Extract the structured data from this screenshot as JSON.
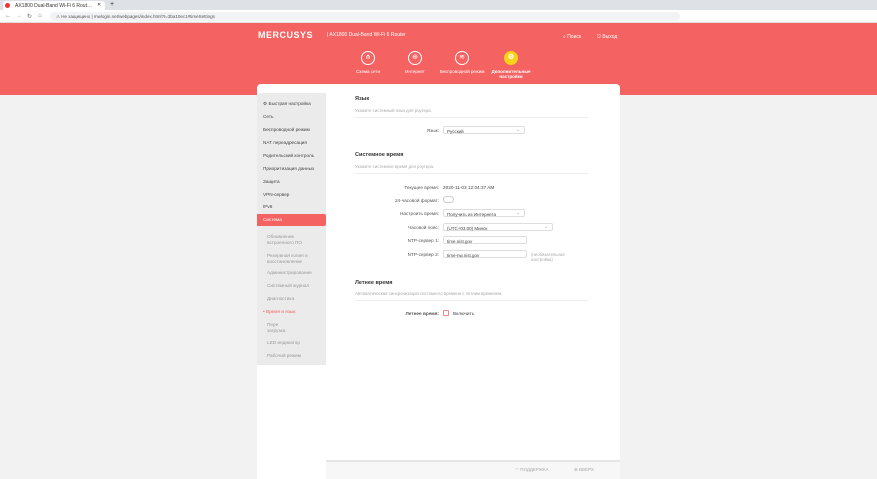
{
  "browser": {
    "tab_title": "AX1800 Dual-Band Wi-Fi 6 Rout…",
    "security": "Не защищено",
    "url": "mwlogin.net/webpages/index.html?t=3ba10ec1#timeSettings"
  },
  "header": {
    "logo": "MERCUSYS",
    "model": "AX1800 Dual-Band Wi-Fi 6 Router",
    "search": "Поиск",
    "logout": "Выход",
    "nav": [
      {
        "label": "Схема сети",
        "icon": "network-map-icon"
      },
      {
        "label": "Интернет",
        "icon": "globe-icon"
      },
      {
        "label": "Беспроводной режим",
        "icon": "wifi-icon"
      },
      {
        "label": "Дополнительные настройки",
        "icon": "gear-icon",
        "active": true
      }
    ]
  },
  "sidebar": {
    "items": [
      "Быстрая настройка",
      "Сеть",
      "Беспроводной режим",
      "NAT переадресация",
      "Родительский контроль",
      "Приоритизация данных",
      "Защита",
      "VPN-сервер",
      "IPv6",
      "Система"
    ],
    "subitems": [
      "Обновление встроенного ПО",
      "Резервная копия и восстановление",
      "Администрирование",
      "Системный журнал",
      "Диагностика",
      "Время и язык",
      "Пере загрузка",
      "LED индикатор",
      "Рабочий режим"
    ]
  },
  "language": {
    "title": "Язык",
    "desc": "Укажите системный язык для роутера.",
    "label": "Язык:",
    "value": "Русский"
  },
  "time": {
    "title": "Системное время",
    "desc": "Укажите системное время для роутера.",
    "current_label": "Текущее время:",
    "current": "2020-11-03 12:04:37 AM",
    "format_label": "24-часовой формат:",
    "format_on": false,
    "set_label": "Настроить время:",
    "set_value": "Получить из Интернета",
    "tz_label": "Часовой пояс:",
    "tz_value": "(UTC+03:00) Минск",
    "ntp1_label": "NTP-сервер 1:",
    "ntp1": "time.nist.gov",
    "ntp2_label": "NTP-сервер 2:",
    "ntp2": "time-nw.nist.gov",
    "ntp2_note": "(необязательная настройка)"
  },
  "dst": {
    "title": "Летнее время",
    "desc": "Автоматическая синхронизация системного времени с летним временем.",
    "label": "Летнее время:",
    "checkbox": "Включить",
    "checked": false
  },
  "footer": {
    "support": "ПОДДЕРЖКА",
    "top": "ВВЕРХ"
  },
  "colors": {
    "brand": "#f56262",
    "active_nav": "#f7d11b"
  }
}
